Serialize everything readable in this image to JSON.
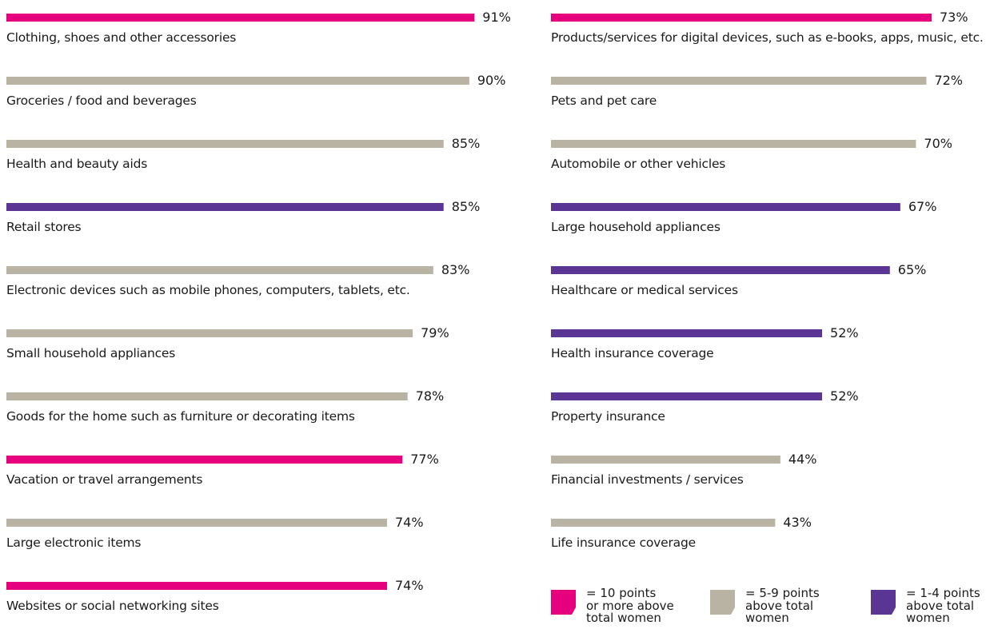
{
  "chart_data": {
    "type": "bar",
    "orientation": "horizontal",
    "grid": false,
    "xlim": [
      0,
      100
    ],
    "panels": [
      {
        "items": [
          {
            "label": "Clothing, shoes and other accessories",
            "value": 91,
            "value_label": "91%",
            "group": "pink"
          },
          {
            "label": "Groceries / food and beverages",
            "value": 90,
            "value_label": "90%",
            "group": "gray"
          },
          {
            "label": "Health and beauty aids",
            "value": 85,
            "value_label": "85%",
            "group": "gray"
          },
          {
            "label": "Retail stores",
            "value": 85,
            "value_label": "85%",
            "group": "purple"
          },
          {
            "label": "Electronic devices such as mobile phones, computers, tablets, etc.",
            "value": 83,
            "value_label": "83%",
            "group": "gray"
          },
          {
            "label": "Small household appliances",
            "value": 79,
            "value_label": "79%",
            "group": "gray"
          },
          {
            "label": "Goods for the home such as furniture or decorating items",
            "value": 78,
            "value_label": "78%",
            "group": "gray"
          },
          {
            "label": "Vacation or travel arrangements",
            "value": 77,
            "value_label": "77%",
            "group": "pink"
          },
          {
            "label": "Large electronic items",
            "value": 74,
            "value_label": "74%",
            "group": "gray"
          },
          {
            "label": "Websites or social networking sites",
            "value": 74,
            "value_label": "74%",
            "group": "pink"
          }
        ]
      },
      {
        "items": [
          {
            "label": "Products/services for digital devices, such as e-books, apps, music, etc.",
            "value": 73,
            "value_label": "73%",
            "group": "pink"
          },
          {
            "label": "Pets and pet care",
            "value": 72,
            "value_label": "72%",
            "group": "gray"
          },
          {
            "label": "Automobile or other vehicles",
            "value": 70,
            "value_label": "70%",
            "group": "gray"
          },
          {
            "label": "Large household appliances",
            "value": 67,
            "value_label": "67%",
            "group": "purple"
          },
          {
            "label": "Healthcare or medical services",
            "value": 65,
            "value_label": "65%",
            "group": "purple"
          },
          {
            "label": "Health insurance coverage",
            "value": 52,
            "value_label": "52%",
            "group": "purple"
          },
          {
            "label": "Property insurance",
            "value": 52,
            "value_label": "52%",
            "group": "purple"
          },
          {
            "label": "Financial investments / services",
            "value": 44,
            "value_label": "44%",
            "group": "gray"
          },
          {
            "label": "Life insurance coverage",
            "value": 43,
            "value_label": "43%",
            "group": "gray"
          }
        ]
      }
    ],
    "colors": {
      "pink": "#e6007e",
      "gray": "#b9b3a4",
      "purple": "#5b3593"
    },
    "legend": [
      {
        "group": "pink",
        "lines": [
          "= 10 points",
          "or more above",
          "total women"
        ]
      },
      {
        "group": "gray",
        "lines": [
          "= 5-9 points",
          "above total",
          "women"
        ]
      },
      {
        "group": "purple",
        "lines": [
          "= 1-4 points",
          "above total",
          "women"
        ]
      }
    ]
  }
}
